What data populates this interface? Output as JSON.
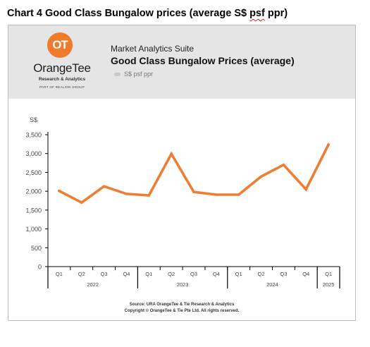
{
  "caption": {
    "prefix": "Chart 4 Good Class Bungalow prices (average S$ ",
    "squiggle": "psf",
    "suffix": " ppr)"
  },
  "logo": {
    "mark": "OT",
    "name": "OrangeTee",
    "sub": "Research & Analytics",
    "group": "PART OF REALION GROUP"
  },
  "header": {
    "suite": "Market Analytics Suite",
    "title": "Good Class Bungalow Prices (average)",
    "legend_label": "S$ psf ppr"
  },
  "source": {
    "line1": "Source: URA OrangeTee & Tie Research & Analytics",
    "line2": "Copyright © OrangeTee & Tie Pte Ltd. All rights reserved."
  },
  "chart_data": {
    "type": "line",
    "ylabel": "S$",
    "ylim": [
      0,
      3500
    ],
    "yticks": [
      0,
      500,
      1000,
      1500,
      2000,
      2500,
      3000,
      3500
    ],
    "ytick_labels": [
      "0",
      "500",
      "1,000",
      "1,500",
      "2,000",
      "2,500",
      "3,000",
      "3,500"
    ],
    "categories": [
      "Q1",
      "Q2",
      "Q3",
      "Q4",
      "Q1",
      "Q2",
      "Q3",
      "Q4",
      "Q1",
      "Q2",
      "Q3",
      "Q4",
      "Q1"
    ],
    "year_groups": [
      {
        "label": "2022",
        "count": 4
      },
      {
        "label": "2023",
        "count": 4
      },
      {
        "label": "2024",
        "count": 4
      },
      {
        "label": "2025",
        "count": 1
      }
    ],
    "series": [
      {
        "values": [
          2010,
          1700,
          2130,
          1930,
          1890,
          2990,
          1980,
          1910,
          1910,
          2390,
          2700,
          2050,
          3240
        ]
      }
    ],
    "line_color": "#ee7d33",
    "grid": false
  }
}
